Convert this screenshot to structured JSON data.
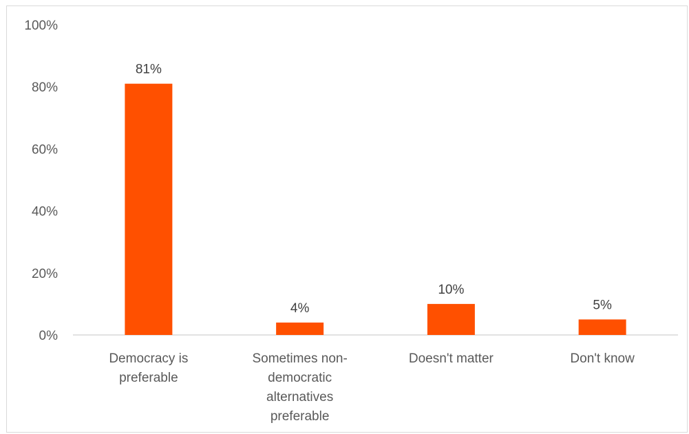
{
  "chart_data": {
    "type": "bar",
    "title": "",
    "xlabel": "",
    "ylabel": "",
    "categories": [
      "Democracy is preferable",
      "Sometimes non-democratic alternatives preferable",
      "Doesn't matter",
      "Don't know"
    ],
    "category_lines": [
      [
        "Democracy is",
        "preferable"
      ],
      [
        "Sometimes non-",
        "democratic",
        "alternatives",
        "preferable"
      ],
      [
        "Doesn't matter"
      ],
      [
        "Don't know"
      ]
    ],
    "values": [
      81,
      4,
      10,
      5
    ],
    "value_labels": [
      "81%",
      "4%",
      "10%",
      "5%"
    ],
    "ylim": [
      0,
      100
    ],
    "yticks": [
      0,
      20,
      40,
      60,
      80,
      100
    ],
    "ytick_labels": [
      "0%",
      "20%",
      "40%",
      "60%",
      "80%",
      "100%"
    ],
    "grid": false,
    "legend": "none",
    "bar_color": "#FF5000",
    "axis_color": "#D9D9D9",
    "text_color": "#595959"
  }
}
